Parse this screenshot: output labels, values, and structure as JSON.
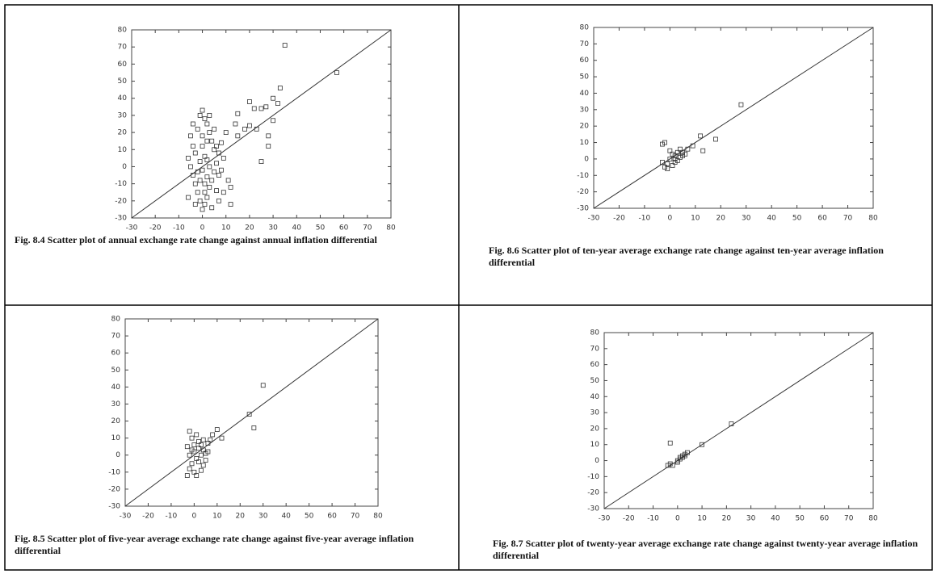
{
  "chart_data": [
    {
      "type": "scatter",
      "caption": "Fig. 8.4   Scatter plot of annual exchange rate change against annual inflation differential",
      "xlim": [
        -30,
        80
      ],
      "ylim": [
        -30,
        80
      ],
      "xticks": [
        -30,
        -20,
        -10,
        0,
        10,
        20,
        30,
        40,
        50,
        60,
        70,
        80
      ],
      "yticks": [
        -30,
        -20,
        -10,
        0,
        10,
        20,
        30,
        40,
        50,
        60,
        70,
        80
      ],
      "x": [
        -5,
        -4,
        -3,
        -2,
        -1,
        0,
        1,
        2,
        3,
        4,
        5,
        -6,
        -5,
        -4,
        -3,
        -2,
        -1,
        0,
        1,
        2,
        3,
        4,
        5,
        6,
        7,
        8,
        -1,
        0,
        1,
        2,
        3,
        0,
        -2,
        1,
        2,
        -3,
        4,
        6,
        5,
        3,
        -4,
        7,
        -6,
        0,
        2,
        -1,
        1,
        8,
        9,
        6,
        57,
        35,
        33,
        30,
        32,
        25,
        27,
        20,
        22,
        30,
        28,
        28,
        25,
        15,
        14,
        18,
        20,
        23,
        15,
        10,
        11,
        12,
        7,
        9,
        12
      ],
      "values": [
        18,
        12,
        8,
        22,
        30,
        33,
        28,
        25,
        20,
        15,
        10,
        5,
        0,
        -5,
        -10,
        -15,
        -20,
        -25,
        -22,
        -18,
        -12,
        -8,
        -3,
        2,
        8,
        14,
        3,
        -2,
        6,
        -6,
        0,
        12,
        -3,
        -10,
        15,
        -22,
        -24,
        -14,
        22,
        30,
        25,
        -20,
        -18,
        18,
        4,
        -8,
        -15,
        -2,
        5,
        12,
        55,
        71,
        46,
        40,
        37,
        34,
        35,
        38,
        34,
        27,
        18,
        12,
        3,
        31,
        25,
        22,
        24,
        22,
        18,
        20,
        -8,
        -12,
        -5,
        -15,
        -22
      ]
    },
    {
      "type": "scatter",
      "caption": "Fig. 8.6   Scatter plot of ten-year average exchange rate change against ten-year average inflation differential",
      "xlim": [
        -30,
        80
      ],
      "ylim": [
        -30,
        80
      ],
      "xticks": [
        -30,
        -20,
        -10,
        0,
        10,
        20,
        30,
        40,
        50,
        60,
        70,
        80
      ],
      "yticks": [
        -30,
        -20,
        -10,
        0,
        10,
        20,
        30,
        40,
        50,
        60,
        70,
        80
      ],
      "x": [
        28,
        18,
        12,
        13,
        9,
        -3,
        -2,
        7,
        5,
        0,
        1,
        2,
        3,
        4,
        -1,
        -2,
        0,
        1,
        2,
        3,
        4,
        5,
        6,
        -3,
        -1,
        2
      ],
      "values": [
        33,
        12,
        14,
        5,
        8,
        9,
        10,
        6,
        2,
        0,
        3,
        -2,
        4,
        1,
        -3,
        -5,
        5,
        -4,
        2,
        -1,
        6,
        4,
        3,
        -2,
        -6,
        0
      ]
    },
    {
      "type": "scatter",
      "caption": "Fig. 8.5   Scatter plot of five-year average exchange rate change against five-year average inflation differential",
      "xlim": [
        -30,
        80
      ],
      "ylim": [
        -30,
        80
      ],
      "xticks": [
        -30,
        -20,
        -10,
        0,
        10,
        20,
        30,
        40,
        50,
        60,
        70,
        80
      ],
      "yticks": [
        -30,
        -20,
        -10,
        0,
        10,
        20,
        30,
        40,
        50,
        60,
        70,
        80
      ],
      "x": [
        30,
        24,
        26,
        10,
        12,
        8,
        -2,
        -3,
        -2,
        -1,
        0,
        1,
        2,
        3,
        4,
        5,
        6,
        7,
        -1,
        0,
        1,
        2,
        3,
        4,
        5,
        -2,
        -3,
        0,
        1,
        2,
        6,
        4,
        -1,
        3
      ],
      "values": [
        41,
        24,
        16,
        15,
        10,
        12,
        14,
        5,
        0,
        -5,
        -10,
        -12,
        8,
        6,
        3,
        -3,
        7,
        9,
        10,
        2,
        -2,
        4,
        0,
        -6,
        1,
        -8,
        -12,
        6,
        12,
        -4,
        2,
        9,
        3,
        -9
      ]
    },
    {
      "type": "scatter",
      "caption": "Fig. 8.7   Scatter plot of twenty-year average exchange rate change against twenty-year average inflation differential",
      "xlim": [
        -30,
        80
      ],
      "ylim": [
        -30,
        80
      ],
      "xticks": [
        -30,
        -20,
        -10,
        0,
        10,
        20,
        30,
        40,
        50,
        60,
        70,
        80
      ],
      "yticks": [
        -30,
        -20,
        -10,
        0,
        10,
        20,
        30,
        40,
        50,
        60,
        70,
        80
      ],
      "x": [
        22,
        10,
        -3,
        -4,
        -3,
        -2,
        0,
        1,
        2,
        3,
        4,
        1,
        2,
        3,
        0
      ],
      "values": [
        23,
        10,
        11,
        -3,
        -2,
        -3,
        0,
        2,
        3,
        4,
        5,
        1,
        2,
        3,
        -1
      ]
    }
  ]
}
